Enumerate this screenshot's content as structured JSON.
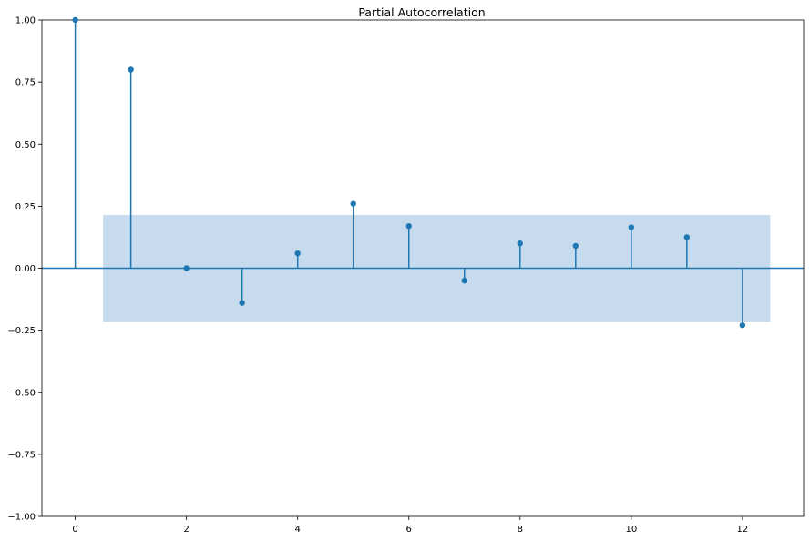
{
  "chart_data": {
    "type": "stem",
    "title": "Partial Autocorrelation",
    "xlabel": "",
    "ylabel": "",
    "xlim": [
      -0.6,
      13.1
    ],
    "ylim": [
      -1.0,
      1.0
    ],
    "xticks": [
      0,
      2,
      4,
      6,
      8,
      10,
      12
    ],
    "xtick_labels": [
      "0",
      "2",
      "4",
      "6",
      "8",
      "10",
      "12"
    ],
    "yticks": [
      -1.0,
      -0.75,
      -0.5,
      -0.25,
      0.0,
      0.25,
      0.5,
      0.75,
      1.0
    ],
    "ytick_labels": [
      "−1.00",
      "−0.75",
      "−0.50",
      "−0.25",
      "0.00",
      "0.25",
      "0.50",
      "0.75",
      "1.00"
    ],
    "grid": false,
    "series": [
      {
        "lags": [
          0,
          1,
          2,
          3,
          4,
          5,
          6,
          7,
          8,
          9,
          10,
          11,
          12
        ],
        "values": [
          1.0,
          0.8,
          0.0,
          -0.14,
          0.06,
          0.26,
          0.17,
          -0.05,
          0.1,
          0.09,
          0.165,
          0.125,
          -0.23
        ]
      }
    ],
    "confidence_band": {
      "x_range": [
        0.5,
        12.5
      ],
      "upper": 0.215,
      "lower": -0.215
    },
    "colors": {
      "series": "#1f77b4",
      "band": "#c6dbed",
      "spine": "#000000"
    }
  }
}
